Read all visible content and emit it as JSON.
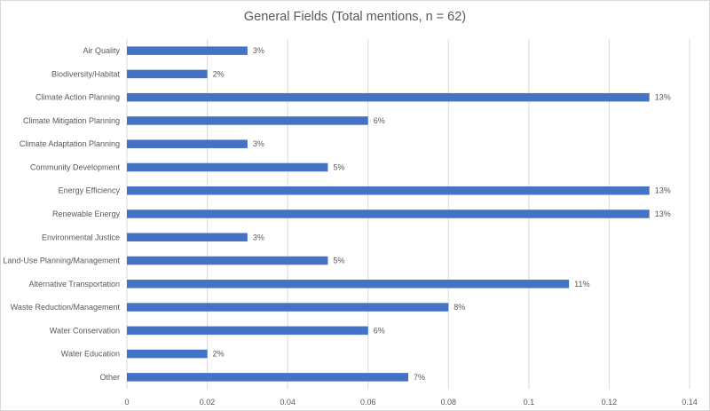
{
  "colors": {
    "bar": "#4472c4",
    "gridline": "#d9d9d9",
    "text": "#595959"
  },
  "chart_data": {
    "type": "bar",
    "orientation": "horizontal",
    "title": "General Fields (Total mentions, n = 62)",
    "xlabel": "",
    "ylabel": "",
    "xlim": [
      0,
      0.14
    ],
    "x_ticks": [
      "0",
      "0.02",
      "0.04",
      "0.06",
      "0.08",
      "0.1",
      "0.12",
      "0.14"
    ],
    "grid": "vertical",
    "legend": "none",
    "categories": [
      "Air Quality",
      "Biodiversity/Habitat",
      "Climate Action Planning",
      "Climate Mitigation Planning",
      "Climate Adaptation Planning",
      "Community Development",
      "Energy Efficiency",
      "Renewable Energy",
      "Environmental Justice",
      "Land-Use Planning/Management",
      "Alternative Transportation",
      "Waste Reduction/Management",
      "Water Conservation",
      "Water Education",
      "Other"
    ],
    "values": [
      0.03,
      0.02,
      0.13,
      0.06,
      0.03,
      0.05,
      0.13,
      0.13,
      0.03,
      0.05,
      0.11,
      0.08,
      0.06,
      0.02,
      0.07
    ],
    "data_labels": [
      "3%",
      "2%",
      "13%",
      "6%",
      "3%",
      "5%",
      "13%",
      "13%",
      "3%",
      "5%",
      "11%",
      "8%",
      "6%",
      "2%",
      "7%"
    ]
  }
}
